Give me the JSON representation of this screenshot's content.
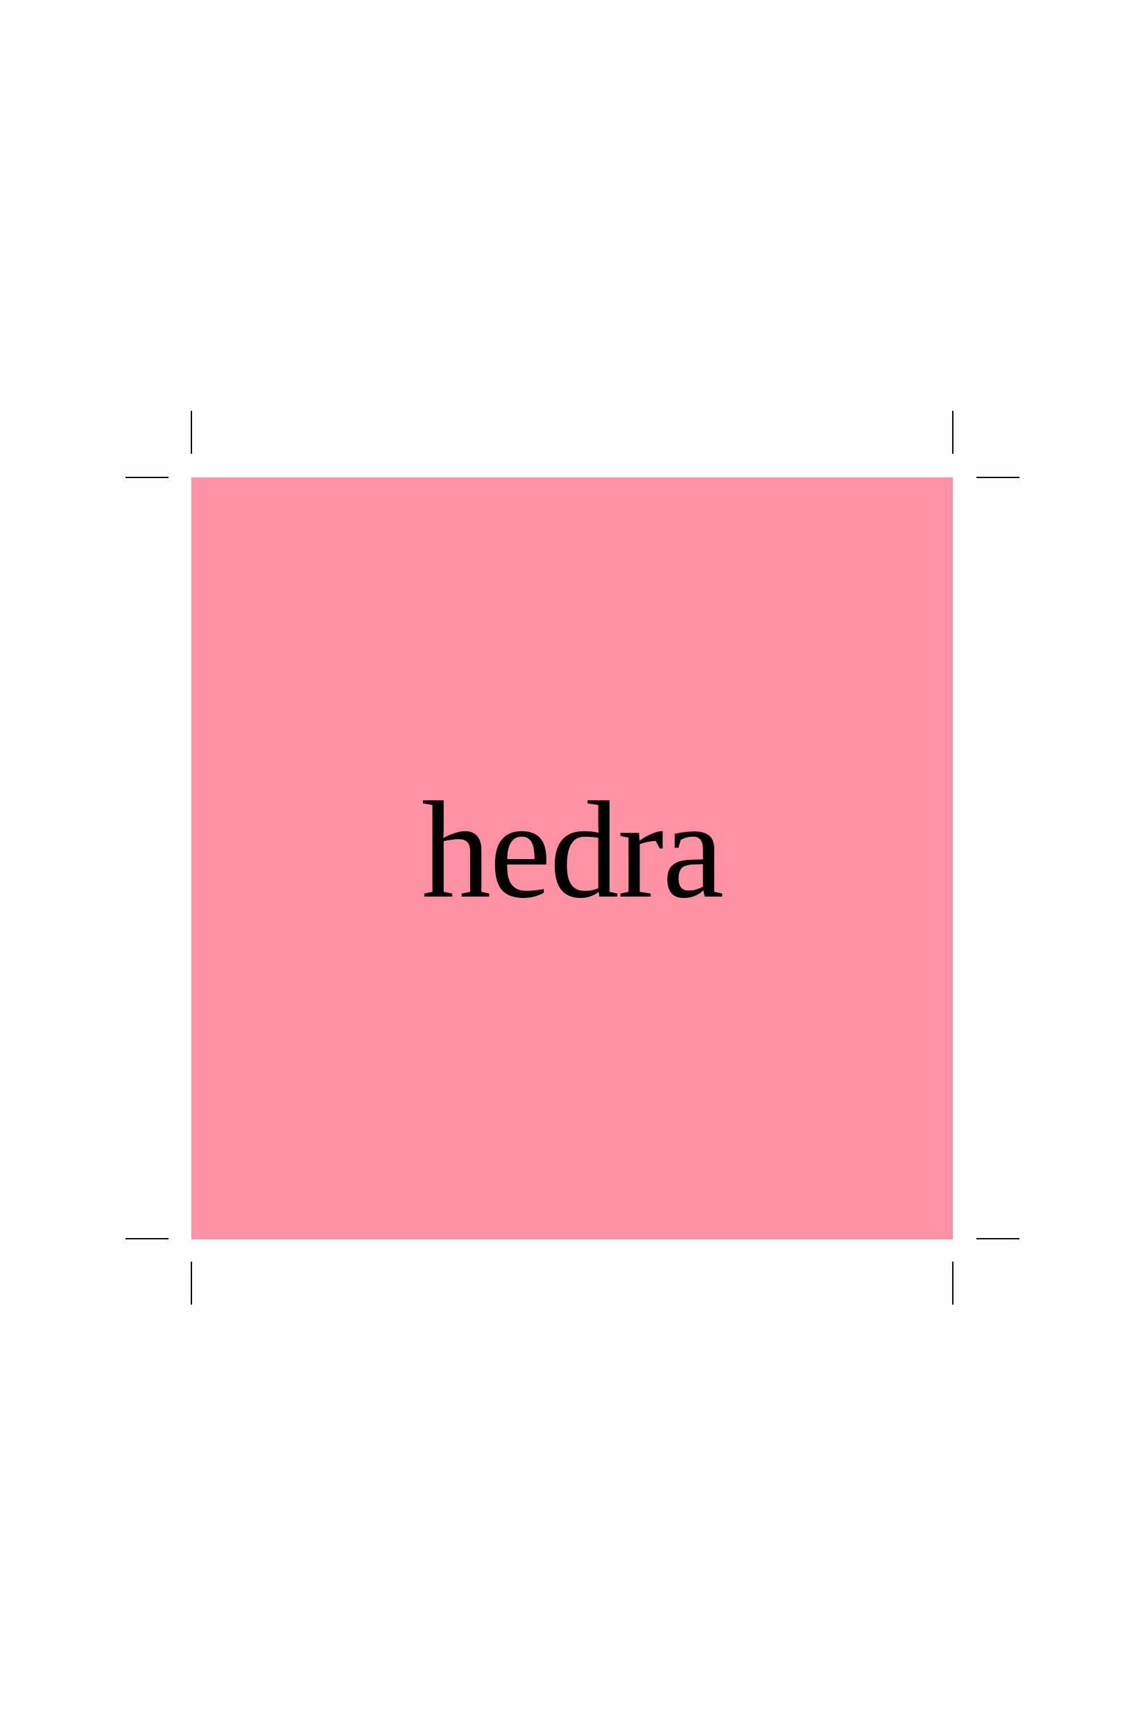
{
  "artwork": {
    "label": "hedra",
    "background_color": "#fe91a3",
    "text_color": "#000000"
  },
  "page": {
    "background_color": "#fefefe",
    "crop_mark_color": "#111111"
  }
}
